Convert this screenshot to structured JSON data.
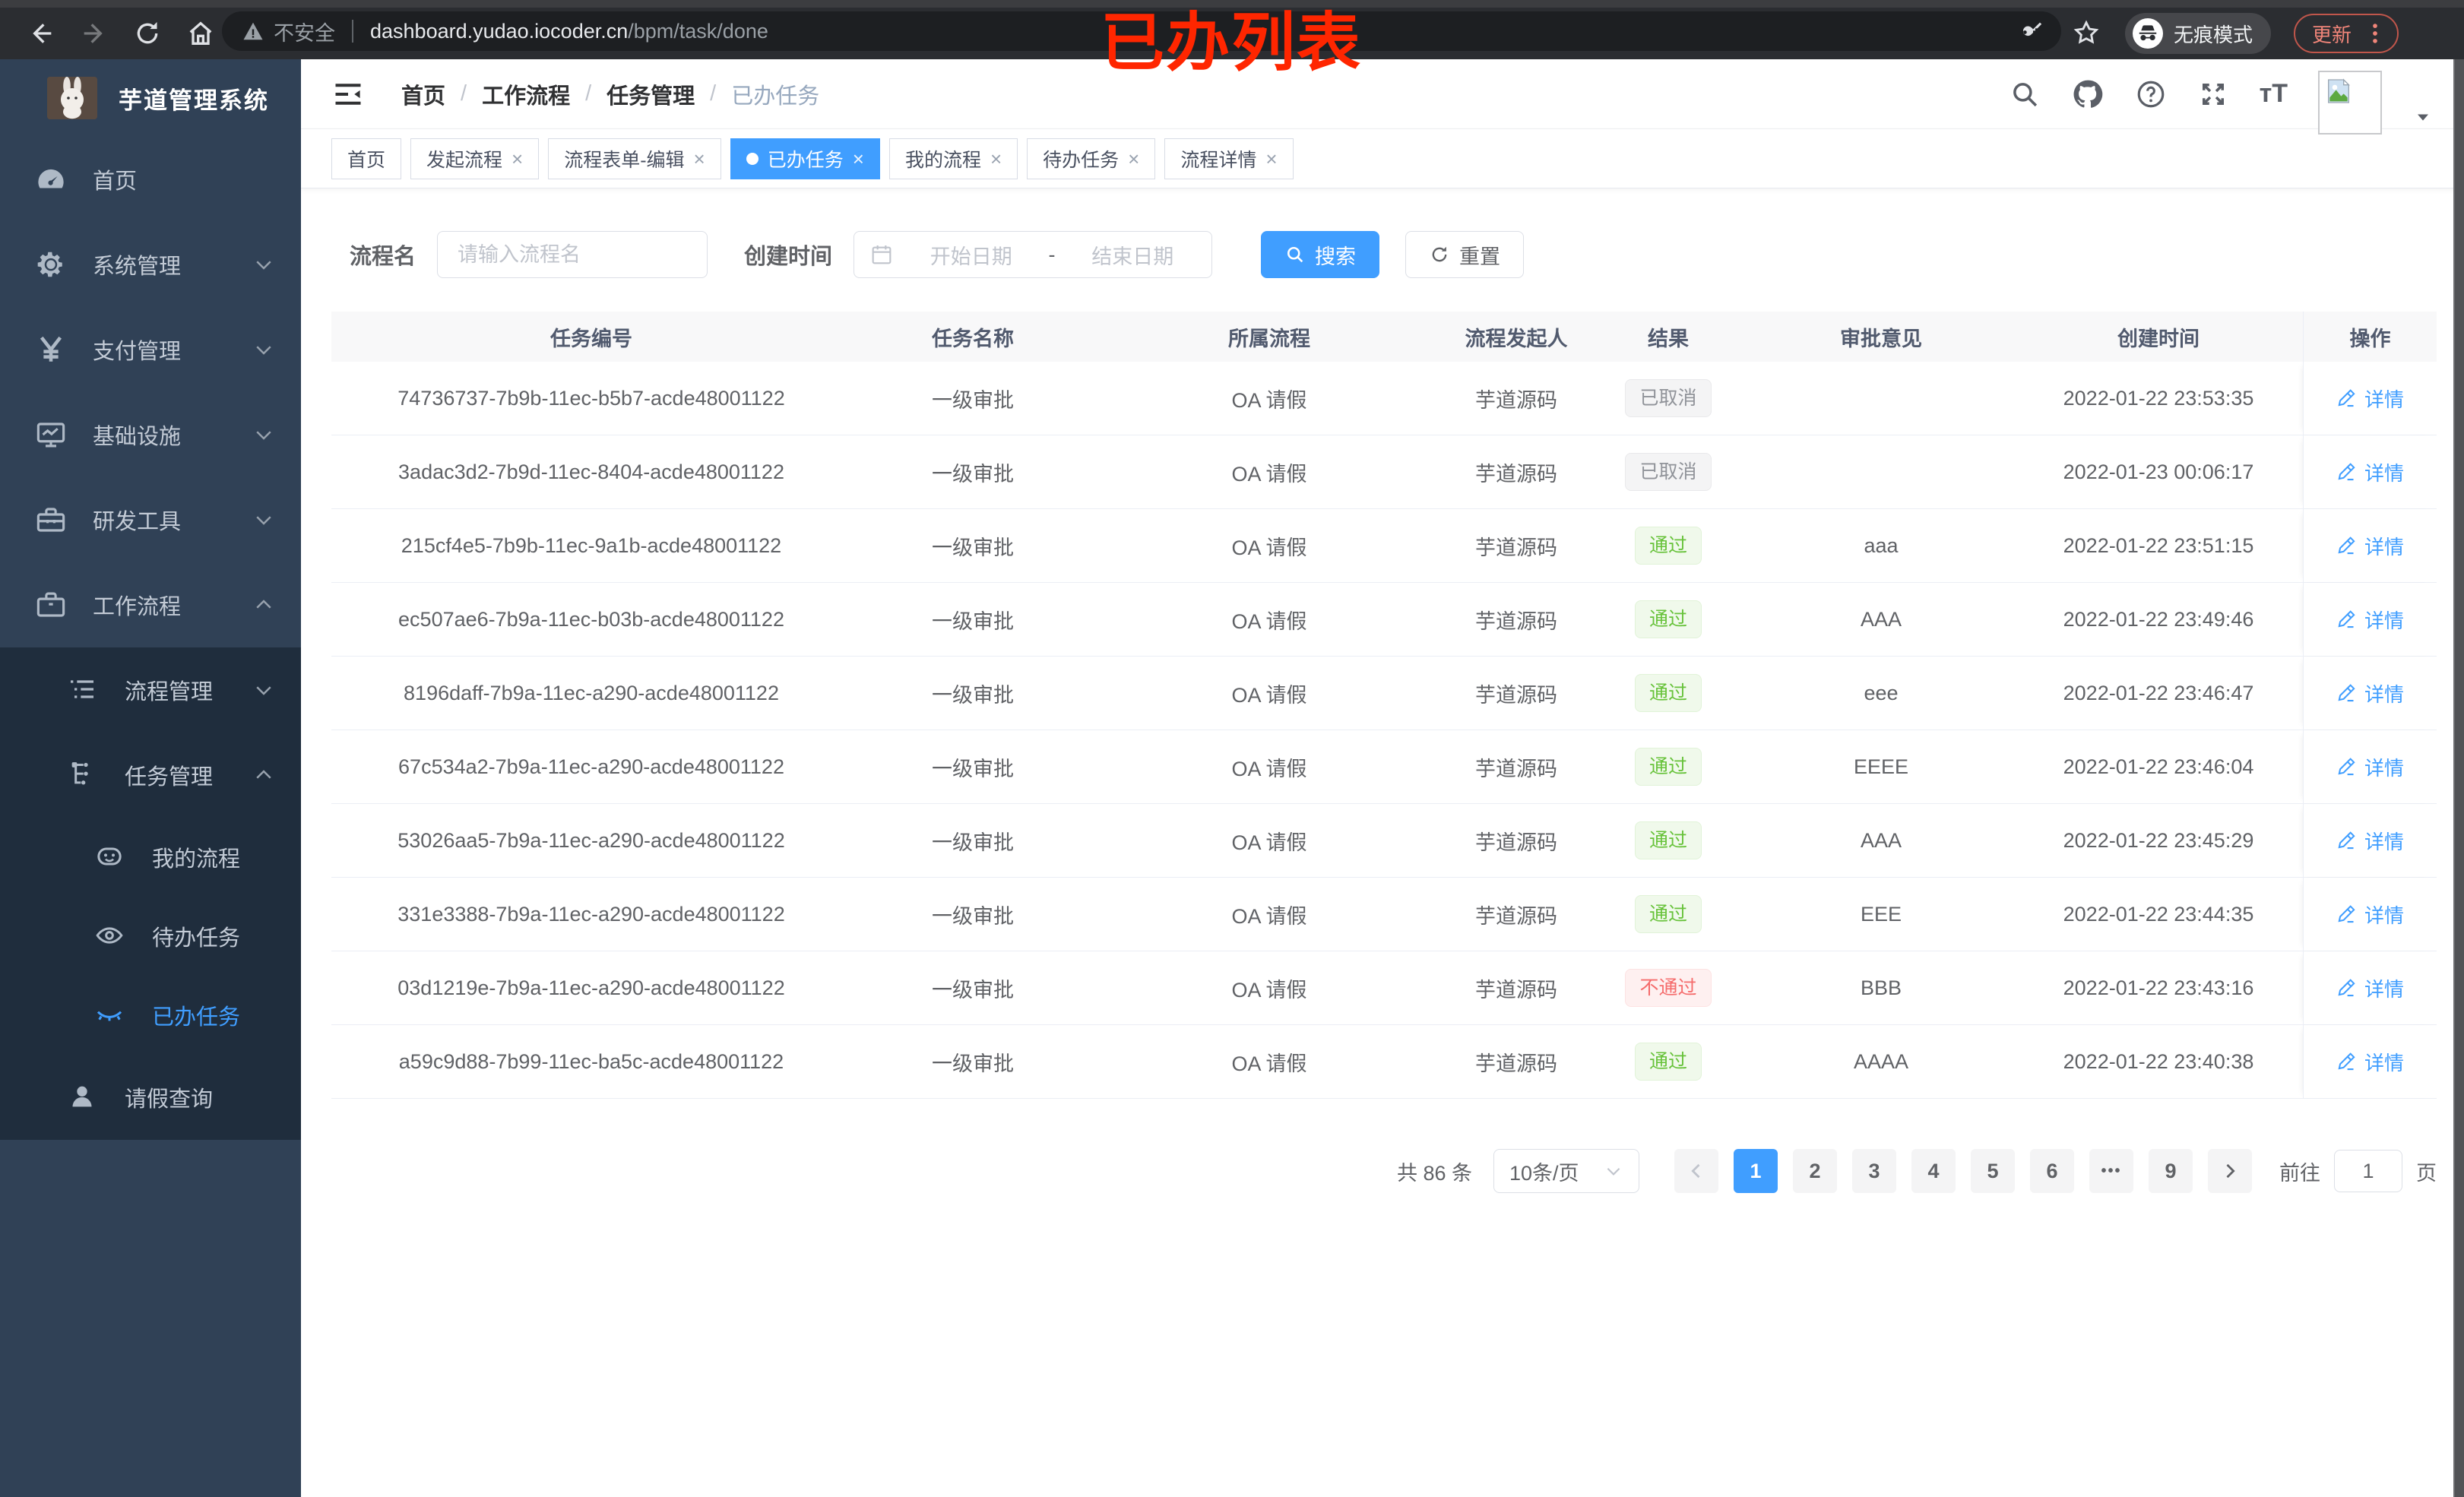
{
  "chrome": {
    "security_label": "不安全",
    "url_host": "dashboard.yudao.iocoder.cn",
    "url_path": "/bpm/task/done",
    "incognito_label": "无痕模式",
    "update_label": "更新"
  },
  "annotation": {
    "text": "已办列表",
    "color": "#ff2600"
  },
  "sidebar": {
    "title": "芋道管理系统",
    "items": [
      {
        "label": "首页",
        "icon": "dashboard-icon"
      },
      {
        "label": "系统管理",
        "icon": "gear-icon",
        "chevron": "down"
      },
      {
        "label": "支付管理",
        "icon": "yen-icon",
        "chevron": "down"
      },
      {
        "label": "基础设施",
        "icon": "monitor-icon",
        "chevron": "down"
      },
      {
        "label": "研发工具",
        "icon": "toolbox-icon",
        "chevron": "down"
      },
      {
        "label": "工作流程",
        "icon": "briefcase-icon",
        "chevron": "up"
      }
    ],
    "submenu": [
      {
        "label": "流程管理",
        "icon": "tree-icon",
        "chevron": "down",
        "level": 1
      },
      {
        "label": "任务管理",
        "icon": "org-icon",
        "chevron": "up",
        "level": 1
      },
      {
        "label": "我的流程",
        "icon": "face-icon",
        "level": 2
      },
      {
        "label": "待办任务",
        "icon": "eye-icon",
        "level": 2
      },
      {
        "label": "已办任务",
        "icon": "eye-closed-icon",
        "level": 2,
        "active": true
      },
      {
        "label": "请假查询",
        "icon": "user-icon",
        "level": 1
      }
    ]
  },
  "breadcrumb": {
    "items": [
      "首页",
      "工作流程",
      "任务管理",
      "已办任务"
    ]
  },
  "tabs": [
    {
      "label": "首页",
      "closable": false,
      "active": false
    },
    {
      "label": "发起流程",
      "closable": true,
      "active": false
    },
    {
      "label": "流程表单-编辑",
      "closable": true,
      "active": false
    },
    {
      "label": "已办任务",
      "closable": true,
      "active": true
    },
    {
      "label": "我的流程",
      "closable": true,
      "active": false
    },
    {
      "label": "待办任务",
      "closable": true,
      "active": false
    },
    {
      "label": "流程详情",
      "closable": true,
      "active": false
    }
  ],
  "filters": {
    "name_label": "流程名",
    "name_placeholder": "请输入流程名",
    "time_label": "创建时间",
    "start_placeholder": "开始日期",
    "range_separator": "-",
    "end_placeholder": "结束日期",
    "search_label": "搜索",
    "reset_label": "重置"
  },
  "table": {
    "headers": [
      "任务编号",
      "任务名称",
      "所属流程",
      "流程发起人",
      "结果",
      "审批意见",
      "创建时间",
      "操作"
    ],
    "detail_label": "详情",
    "rows": [
      {
        "id": "74736737-7b9b-11ec-b5b7-acde48001122",
        "name": "一级审批",
        "process": "OA 请假",
        "starter": "芋道源码",
        "result": "已取消",
        "result_type": "info",
        "comment": "",
        "time": "2022-01-22 23:53:35"
      },
      {
        "id": "3adac3d2-7b9d-11ec-8404-acde48001122",
        "name": "一级审批",
        "process": "OA 请假",
        "starter": "芋道源码",
        "result": "已取消",
        "result_type": "info",
        "comment": "",
        "time": "2022-01-23 00:06:17"
      },
      {
        "id": "215cf4e5-7b9b-11ec-9a1b-acde48001122",
        "name": "一级审批",
        "process": "OA 请假",
        "starter": "芋道源码",
        "result": "通过",
        "result_type": "success",
        "comment": "aaa",
        "time": "2022-01-22 23:51:15"
      },
      {
        "id": "ec507ae6-7b9a-11ec-b03b-acde48001122",
        "name": "一级审批",
        "process": "OA 请假",
        "starter": "芋道源码",
        "result": "通过",
        "result_type": "success",
        "comment": "AAA",
        "time": "2022-01-22 23:49:46"
      },
      {
        "id": "8196daff-7b9a-11ec-a290-acde48001122",
        "name": "一级审批",
        "process": "OA 请假",
        "starter": "芋道源码",
        "result": "通过",
        "result_type": "success",
        "comment": "eee",
        "time": "2022-01-22 23:46:47"
      },
      {
        "id": "67c534a2-7b9a-11ec-a290-acde48001122",
        "name": "一级审批",
        "process": "OA 请假",
        "starter": "芋道源码",
        "result": "通过",
        "result_type": "success",
        "comment": "EEEE",
        "time": "2022-01-22 23:46:04"
      },
      {
        "id": "53026aa5-7b9a-11ec-a290-acde48001122",
        "name": "一级审批",
        "process": "OA 请假",
        "starter": "芋道源码",
        "result": "通过",
        "result_type": "success",
        "comment": "AAA",
        "time": "2022-01-22 23:45:29"
      },
      {
        "id": "331e3388-7b9a-11ec-a290-acde48001122",
        "name": "一级审批",
        "process": "OA 请假",
        "starter": "芋道源码",
        "result": "通过",
        "result_type": "success",
        "comment": "EEE",
        "time": "2022-01-22 23:44:35"
      },
      {
        "id": "03d1219e-7b9a-11ec-a290-acde48001122",
        "name": "一级审批",
        "process": "OA 请假",
        "starter": "芋道源码",
        "result": "不通过",
        "result_type": "danger",
        "comment": "BBB",
        "time": "2022-01-22 23:43:16"
      },
      {
        "id": "a59c9d88-7b99-11ec-ba5c-acde48001122",
        "name": "一级审批",
        "process": "OA 请假",
        "starter": "芋道源码",
        "result": "通过",
        "result_type": "success",
        "comment": "AAAA",
        "time": "2022-01-22 23:40:38"
      }
    ]
  },
  "pagination": {
    "total_label": "共 86 条",
    "page_size": "10条/页",
    "pages": [
      {
        "label": "1",
        "active": true
      },
      {
        "label": "2"
      },
      {
        "label": "3"
      },
      {
        "label": "4"
      },
      {
        "label": "5"
      },
      {
        "label": "6"
      },
      {
        "label": "•••",
        "more": true
      },
      {
        "label": "9"
      }
    ],
    "goto_label": "前往",
    "goto_value": "1",
    "page_suffix": "页"
  },
  "colors": {
    "accent": "#409eff",
    "sidebar_bg": "#304156",
    "submenu_bg": "#1f2d3d",
    "tag_success": "#67c23a",
    "tag_danger": "#f56c6c",
    "tag_info": "#909399"
  }
}
